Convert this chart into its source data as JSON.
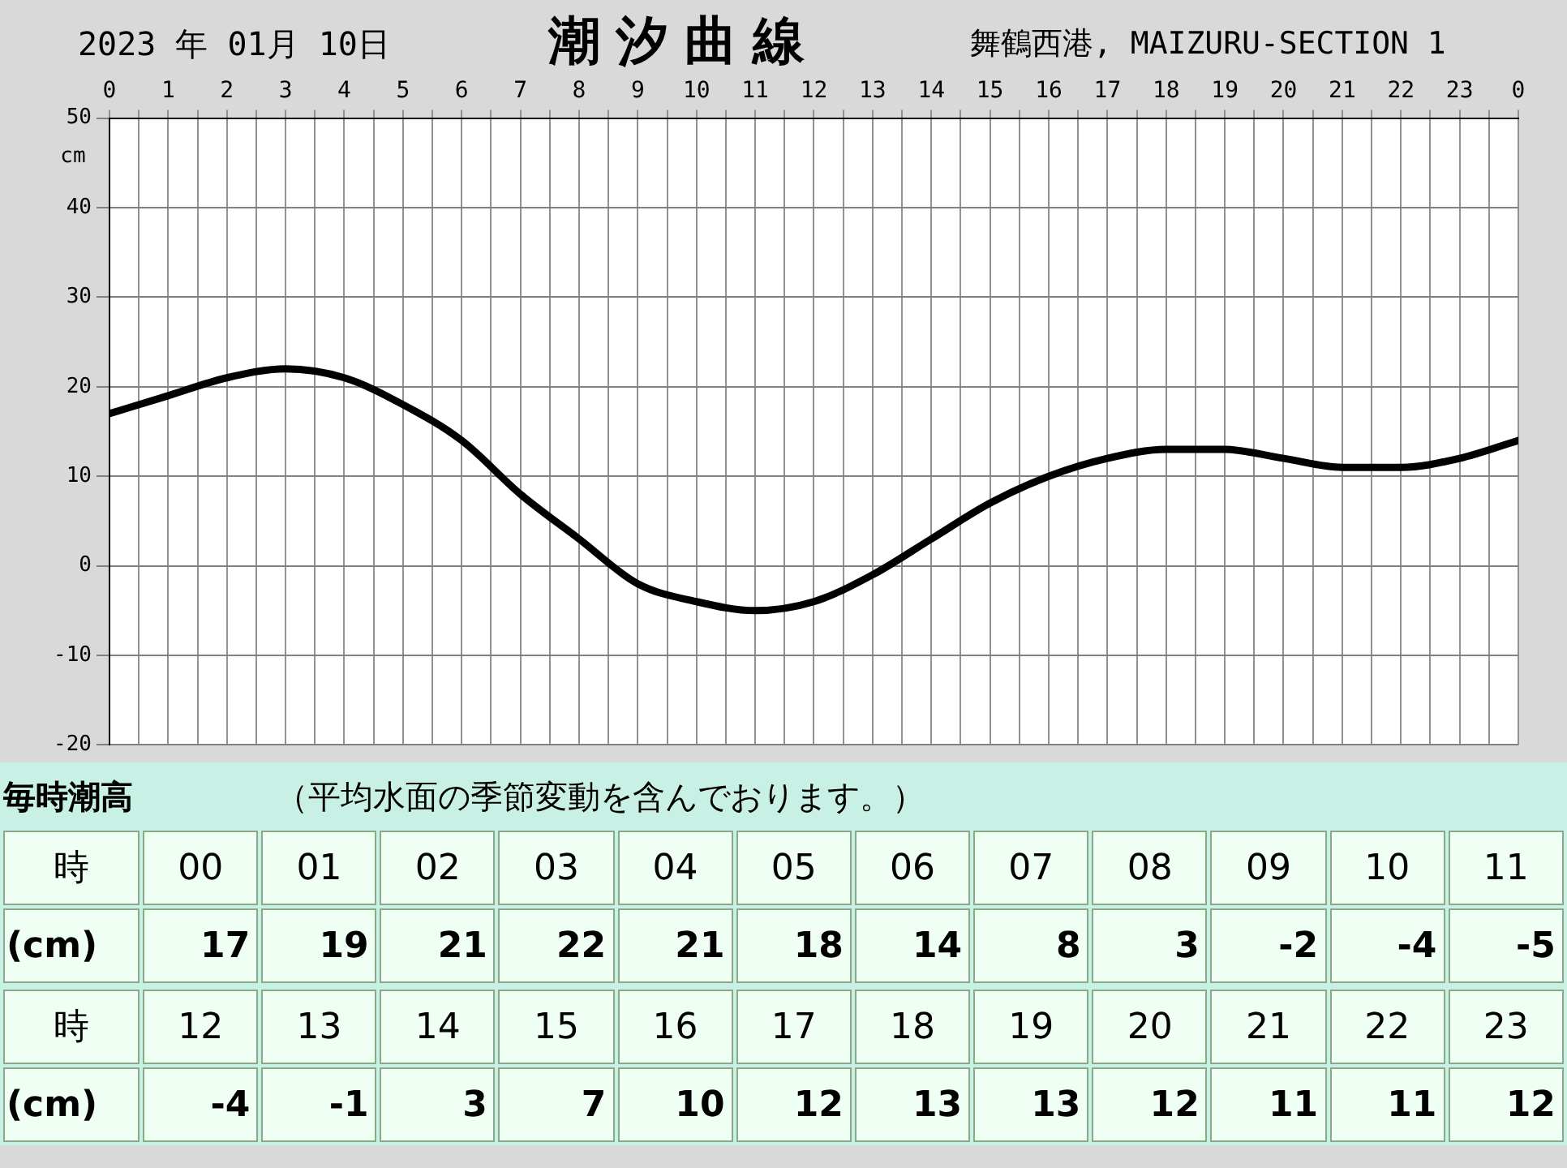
{
  "chart_data": [
    {
      "type": "line",
      "title": "潮汐曲線",
      "subtitle": "2023 年 01月 10日",
      "ylabel": "cm",
      "annotations": [
        "舞鶴西港, MAIZURU-SECTION 1"
      ],
      "x": [
        "2023-01-10T00:00",
        "2023-01-10T01:00",
        "2023-01-10T02:00",
        "2023-01-10T03:00",
        "2023-01-10T04:00",
        "2023-01-10T05:00",
        "2023-01-10T06:00",
        "2023-01-10T07:00",
        "2023-01-10T08:00",
        "2023-01-10T09:00",
        "2023-01-10T10:00",
        "2023-01-10T11:00",
        "2023-01-10T12:00",
        "2023-01-10T13:00",
        "2023-01-10T14:00",
        "2023-01-10T15:00",
        "2023-01-10T16:00",
        "2023-01-10T17:00",
        "2023-01-10T18:00",
        "2023-01-10T19:00",
        "2023-01-10T20:00",
        "2023-01-10T21:00",
        "2023-01-10T22:00",
        "2023-01-10T23:00",
        "2023-01-11T00:00"
      ],
      "series": [
        {
          "color": "#000000",
          "values": [
            17,
            19,
            21,
            22,
            21,
            18,
            14,
            8,
            3,
            -2,
            -4,
            -5,
            -4,
            -1,
            3,
            7,
            10,
            12,
            13,
            13,
            12,
            11,
            11,
            12,
            14
          ]
        }
      ],
      "xlim": [
        "2023-01-10T00:00",
        "2023-01-11T00:00"
      ],
      "xticks": [
        {
          "value": "2023-01-10T00:00",
          "label": "0"
        },
        {
          "value": "2023-01-10T00:30",
          "label": null
        },
        {
          "value": "2023-01-10T01:00",
          "label": "1"
        },
        {
          "value": "2023-01-10T01:30",
          "label": null
        },
        {
          "value": "2023-01-10T02:00",
          "label": "2"
        },
        {
          "value": "2023-01-10T02:30",
          "label": null
        },
        {
          "value": "2023-01-10T03:00",
          "label": "3"
        },
        {
          "value": "2023-01-10T03:30",
          "label": null
        },
        {
          "value": "2023-01-10T04:00",
          "label": "4"
        },
        {
          "value": "2023-01-10T04:30",
          "label": null
        },
        {
          "value": "2023-01-10T05:00",
          "label": "5"
        },
        {
          "value": "2023-01-10T05:30",
          "label": null
        },
        {
          "value": "2023-01-10T06:00",
          "label": "6"
        },
        {
          "value": "2023-01-10T06:30",
          "label": null
        },
        {
          "value": "2023-01-10T07:00",
          "label": "7"
        },
        {
          "value": "2023-01-10T07:30",
          "label": null
        },
        {
          "value": "2023-01-10T08:00",
          "label": "8"
        },
        {
          "value": "2023-01-10T08:30",
          "label": null
        },
        {
          "value": "2023-01-10T09:00",
          "label": "9"
        },
        {
          "value": "2023-01-10T09:30",
          "label": null
        },
        {
          "value": "2023-01-10T10:00",
          "label": "10"
        },
        {
          "value": "2023-01-10T10:30",
          "label": null
        },
        {
          "value": "2023-01-10T11:00",
          "label": "11"
        },
        {
          "value": "2023-01-10T11:30",
          "label": null
        },
        {
          "value": "2023-01-10T12:00",
          "label": "12"
        },
        {
          "value": "2023-01-10T12:30",
          "label": null
        },
        {
          "value": "2023-01-10T13:00",
          "label": "13"
        },
        {
          "value": "2023-01-10T13:30",
          "label": null
        },
        {
          "value": "2023-01-10T14:00",
          "label": "14"
        },
        {
          "value": "2023-01-10T14:30",
          "label": null
        },
        {
          "value": "2023-01-10T15:00",
          "label": "15"
        },
        {
          "value": "2023-01-10T15:30",
          "label": null
        },
        {
          "value": "2023-01-10T16:00",
          "label": "16"
        },
        {
          "value": "2023-01-10T16:30",
          "label": null
        },
        {
          "value": "2023-01-10T17:00",
          "label": "17"
        },
        {
          "value": "2023-01-10T17:30",
          "label": null
        },
        {
          "value": "2023-01-10T18:00",
          "label": "18"
        },
        {
          "value": "2023-01-10T18:30",
          "label": null
        },
        {
          "value": "2023-01-10T19:00",
          "label": "19"
        },
        {
          "value": "2023-01-10T19:30",
          "label": null
        },
        {
          "value": "2023-01-10T20:00",
          "label": "20"
        },
        {
          "value": "2023-01-10T20:30",
          "label": null
        },
        {
          "value": "2023-01-10T21:00",
          "label": "21"
        },
        {
          "value": "2023-01-10T21:30",
          "label": null
        },
        {
          "value": "2023-01-10T22:00",
          "label": "22"
        },
        {
          "value": "2023-01-10T22:30",
          "label": null
        },
        {
          "value": "2023-01-10T23:00",
          "label": "23"
        },
        {
          "value": "2023-01-10T23:30",
          "label": null
        },
        {
          "value": "2023-01-11T00:00",
          "label": "0"
        }
      ],
      "ylim": [
        -20,
        50
      ],
      "yticks": [
        -20,
        -10,
        0,
        10,
        20,
        30,
        40,
        50
      ],
      "grid": true,
      "legend": false,
      "marker": "none",
      "line_style": "solid"
    },
    {
      "type": "heatmap",
      "title": "毎時潮高",
      "subtitle": "（平均水面の季節変動を含んでおります。）",
      "xlabel": "時",
      "categories": [
        "00",
        "01",
        "02",
        "03",
        "04",
        "05",
        "06",
        "07",
        "08",
        "09",
        "10",
        "11"
      ],
      "y_categories": [
        "(cm)"
      ],
      "cells": [
        [
          17,
          19,
          21,
          22,
          21,
          18,
          14,
          8,
          3,
          -2,
          -4,
          -5
        ]
      ],
      "data_labels": true
    },
    {
      "type": "heatmap",
      "xlabel": "時",
      "categories": [
        "12",
        "13",
        "14",
        "15",
        "16",
        "17",
        "18",
        "19",
        "20",
        "21",
        "22",
        "23"
      ],
      "y_categories": [
        "(cm)"
      ],
      "cells": [
        [
          -4,
          -1,
          3,
          7,
          10,
          12,
          13,
          13,
          12,
          11,
          11,
          12
        ]
      ],
      "data_labels": true
    }
  ]
}
